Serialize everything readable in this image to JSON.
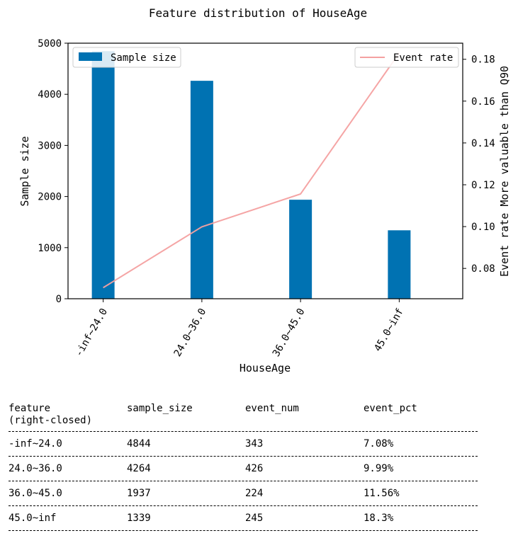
{
  "chart_data": {
    "type": "bar",
    "title": "Feature distribution of HouseAge",
    "xlabel": "HouseAge",
    "ylabel": "Sample size",
    "y2label": "Event rate More valuable than Q90",
    "categories": [
      "-inf~24.0",
      "24.0~36.0",
      "36.0~45.0",
      "45.0~inf"
    ],
    "series": [
      {
        "name": "Sample size",
        "kind": "bar",
        "axis": "left",
        "color": "#0072b2",
        "values": [
          4844,
          4264,
          1937,
          1339
        ]
      },
      {
        "name": "Event rate",
        "kind": "line",
        "axis": "right",
        "color": "#f4a0a0",
        "values": [
          0.0708,
          0.0999,
          0.1156,
          0.183
        ]
      }
    ],
    "ylim": [
      0,
      5000
    ],
    "yticks": [
      0,
      1000,
      2000,
      3000,
      4000,
      5000
    ],
    "y2lim": [
      0.0655,
      0.1877
    ],
    "y2ticks": [
      0.08,
      0.1,
      0.12,
      0.14,
      0.16,
      0.18
    ],
    "y2tick_labels": [
      "0.08",
      "0.10",
      "0.12",
      "0.14",
      "0.16",
      "0.18"
    ],
    "legend_left": "top-left",
    "legend_right": "top-right",
    "grid": false
  },
  "table": {
    "headers": [
      "feature\n(right-closed)",
      "sample_size",
      "event_num",
      "event_pct"
    ],
    "rows": [
      [
        "-inf~24.0",
        "4844",
        "343",
        "7.08%"
      ],
      [
        "24.0~36.0",
        "4264",
        "426",
        "9.99%"
      ],
      [
        "36.0~45.0",
        "1937",
        "224",
        "11.56%"
      ],
      [
        "45.0~inf",
        "1339",
        "245",
        "18.3%"
      ]
    ]
  }
}
